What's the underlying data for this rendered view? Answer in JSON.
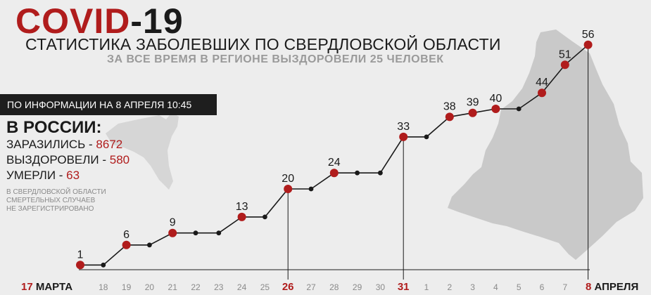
{
  "header": {
    "title_part1": "COVID",
    "title_part2": "-19",
    "subtitle": "СТАТИСТИКА ЗАБОЛЕВШИХ ПО СВЕРДЛОВСКОЙ ОБЛАСТИ",
    "recovered_line": "ЗА ВСЕ ВРЕМЯ В РЕГИОНЕ ВЫЗДОРОВЕЛИ 25 ЧЕЛОВЕК"
  },
  "info_bar": "ПО ИНФОРМАЦИИ НА 8 АПРЕЛЯ 10:45",
  "russia": {
    "title": "В РОССИИ:",
    "stats": [
      {
        "label": "ЗАРАЗИЛИСЬ - ",
        "value": "8672"
      },
      {
        "label": "ВЫЗДОРОВЕЛИ - ",
        "value": "580"
      },
      {
        "label": "УМЕРЛИ - ",
        "value": "63"
      }
    ]
  },
  "note_lines": [
    "В СВЕРДЛОВСКОЙ ОБЛАСТИ",
    "СМЕРТЕЛЬНЫХ СЛУЧАЕВ",
    "НЕ ЗАРЕГИСТРИРОВАНО"
  ],
  "colors": {
    "accent": "#b01c1c",
    "line": "#1a1a1a",
    "background": "#ededed",
    "map": "#c9c9c9"
  },
  "chart_data": {
    "type": "line",
    "x": [
      "17 МАРТА",
      "18",
      "19",
      "20",
      "21",
      "22",
      "23",
      "24",
      "25",
      "26",
      "27",
      "28",
      "29",
      "30",
      "31",
      "1",
      "2",
      "3",
      "4",
      "5",
      "6",
      "7",
      "8 АПРЕЛЯ"
    ],
    "x_tick_labels": [
      {
        "num": "17",
        "word": "МАРТА"
      },
      {
        "num": "18"
      },
      {
        "num": "19"
      },
      {
        "num": "20"
      },
      {
        "num": "21"
      },
      {
        "num": "22"
      },
      {
        "num": "23"
      },
      {
        "num": "24"
      },
      {
        "num": "25"
      },
      {
        "num": "26"
      },
      {
        "num": "27"
      },
      {
        "num": "28"
      },
      {
        "num": "29"
      },
      {
        "num": "30"
      },
      {
        "num": "31"
      },
      {
        "num": "1"
      },
      {
        "num": "2"
      },
      {
        "num": "3"
      },
      {
        "num": "4"
      },
      {
        "num": "5"
      },
      {
        "num": "6"
      },
      {
        "num": "7"
      },
      {
        "num": "8",
        "word": "АПРЕЛЯ"
      }
    ],
    "values": [
      1,
      1,
      6,
      6,
      9,
      9,
      9,
      13,
      13,
      20,
      20,
      24,
      24,
      24,
      33,
      33,
      38,
      39,
      40,
      40,
      44,
      51,
      56
    ],
    "highlighted": [
      true,
      false,
      true,
      false,
      true,
      false,
      false,
      true,
      false,
      true,
      false,
      true,
      false,
      false,
      true,
      false,
      true,
      true,
      true,
      false,
      true,
      true,
      true
    ],
    "emphasized_ticks": [
      0,
      9,
      14,
      22
    ],
    "vertical_markers": [
      9,
      14,
      22
    ],
    "ylim": [
      0,
      56
    ],
    "grid": false
  }
}
